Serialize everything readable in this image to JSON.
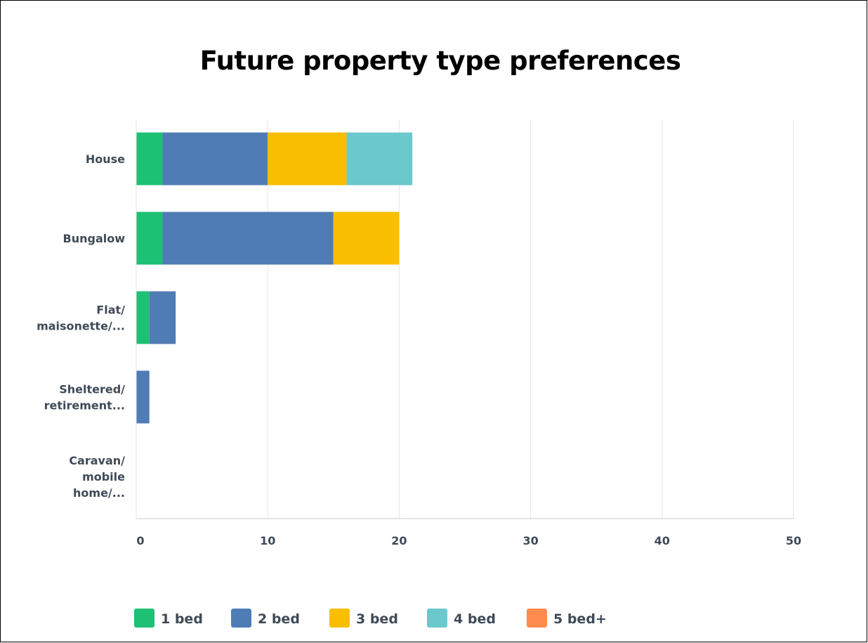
{
  "chart_data": {
    "type": "bar",
    "orientation": "horizontal",
    "stacked": true,
    "title": "Future property type preferences",
    "categories": [
      [
        "House"
      ],
      [
        "Bungalow"
      ],
      [
        "Flat/",
        "maisonette/..."
      ],
      [
        "Sheltered/",
        "retirement..."
      ],
      [
        "Caravan/",
        "mobile",
        "home/..."
      ]
    ],
    "series": [
      {
        "name": "1 bed",
        "color": "#1ec074",
        "values": [
          2,
          2,
          1,
          0,
          0
        ]
      },
      {
        "name": "2 bed",
        "color": "#507cb6",
        "values": [
          8,
          13,
          2,
          1,
          0
        ]
      },
      {
        "name": "3 bed",
        "color": "#f9be00",
        "values": [
          6,
          5,
          0,
          0,
          0
        ]
      },
      {
        "name": "4 bed",
        "color": "#6bc8cd",
        "values": [
          5,
          0,
          0,
          0,
          0
        ]
      },
      {
        "name": "5 bed+",
        "color": "#ff8b4f",
        "values": [
          0,
          0,
          0,
          0,
          0
        ]
      }
    ],
    "xlim": [
      0,
      50
    ],
    "xticks": [
      0,
      10,
      20,
      30,
      40,
      50
    ],
    "grid": true,
    "legend_position": "bottom"
  }
}
